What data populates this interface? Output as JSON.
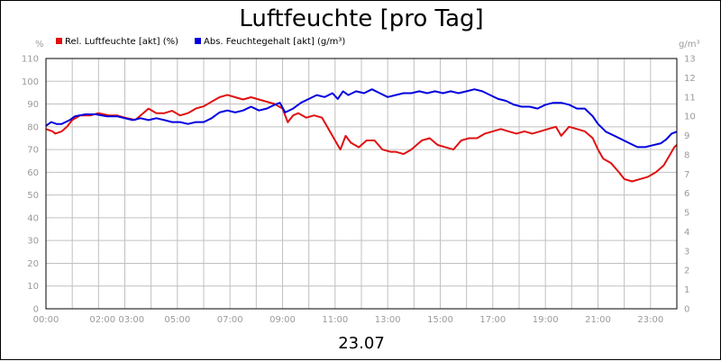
{
  "chart_data": {
    "type": "line",
    "title": "Luftfeuchte [pro Tag]",
    "date_label": "23.07",
    "left_unit": "%",
    "right_unit": "g/m³",
    "ylim_left": [
      0,
      110
    ],
    "ylim_right": [
      0,
      13
    ],
    "grid": true,
    "legend_position": "top-left",
    "x_range_hours": [
      0,
      24
    ],
    "x_ticks": [
      {
        "x": 0,
        "label": "00:00"
      },
      {
        "x": 2.7,
        "label": "02:00 03:00"
      },
      {
        "x": 5,
        "label": "05:00"
      },
      {
        "x": 7,
        "label": "07:00"
      },
      {
        "x": 9,
        "label": "09:00"
      },
      {
        "x": 11,
        "label": "11:00"
      },
      {
        "x": 13,
        "label": "13:00"
      },
      {
        "x": 15,
        "label": "15:00"
      },
      {
        "x": 17,
        "label": "17:00"
      },
      {
        "x": 19,
        "label": "19:00"
      },
      {
        "x": 21,
        "label": "21:00"
      },
      {
        "x": 23,
        "label": "23:00"
      }
    ],
    "y_ticks_left": [
      "0",
      "10",
      "20",
      "30",
      "40",
      "50",
      "60",
      "70",
      "80",
      "90",
      "100",
      "110"
    ],
    "y_ticks_right": [
      "0",
      "1",
      "2",
      "3",
      "4",
      "5",
      "6",
      "7",
      "8",
      "9",
      "10",
      "11",
      "12",
      "13"
    ],
    "series": [
      {
        "name": "Rel. Luftfeuchte [akt] (%)",
        "color": "#e01010",
        "axis": "left",
        "points": [
          [
            0,
            79
          ],
          [
            0.25,
            78
          ],
          [
            0.35,
            77
          ],
          [
            0.6,
            78
          ],
          [
            0.8,
            80
          ],
          [
            1.0,
            83
          ],
          [
            1.3,
            85
          ],
          [
            1.7,
            85
          ],
          [
            2.0,
            86
          ],
          [
            2.4,
            85
          ],
          [
            2.7,
            85
          ],
          [
            3.0,
            84
          ],
          [
            3.4,
            83
          ],
          [
            3.7,
            86
          ],
          [
            3.9,
            88
          ],
          [
            4.2,
            86
          ],
          [
            4.5,
            86
          ],
          [
            4.8,
            87
          ],
          [
            5.1,
            85
          ],
          [
            5.4,
            86
          ],
          [
            5.7,
            88
          ],
          [
            6.0,
            89
          ],
          [
            6.3,
            91
          ],
          [
            6.6,
            93
          ],
          [
            6.9,
            94
          ],
          [
            7.2,
            93
          ],
          [
            7.5,
            92
          ],
          [
            7.8,
            93
          ],
          [
            8.1,
            92
          ],
          [
            8.4,
            91
          ],
          [
            8.7,
            90
          ],
          [
            9.0,
            88
          ],
          [
            9.2,
            82
          ],
          [
            9.4,
            85
          ],
          [
            9.6,
            86
          ],
          [
            9.9,
            84
          ],
          [
            10.2,
            85
          ],
          [
            10.5,
            84
          ],
          [
            10.8,
            78
          ],
          [
            11.0,
            74
          ],
          [
            11.2,
            70
          ],
          [
            11.4,
            76
          ],
          [
            11.6,
            73
          ],
          [
            11.9,
            71
          ],
          [
            12.2,
            74
          ],
          [
            12.5,
            74
          ],
          [
            12.8,
            70
          ],
          [
            13.1,
            69
          ],
          [
            13.3,
            69
          ],
          [
            13.6,
            68
          ],
          [
            13.9,
            70
          ],
          [
            14.1,
            72
          ],
          [
            14.3,
            74
          ],
          [
            14.6,
            75
          ],
          [
            14.9,
            72
          ],
          [
            15.2,
            71
          ],
          [
            15.5,
            70
          ],
          [
            15.8,
            74
          ],
          [
            16.1,
            75
          ],
          [
            16.4,
            75
          ],
          [
            16.7,
            77
          ],
          [
            17.0,
            78
          ],
          [
            17.3,
            79
          ],
          [
            17.6,
            78
          ],
          [
            17.9,
            77
          ],
          [
            18.2,
            78
          ],
          [
            18.5,
            77
          ],
          [
            18.8,
            78
          ],
          [
            19.1,
            79
          ],
          [
            19.4,
            80
          ],
          [
            19.6,
            76
          ],
          [
            19.9,
            80
          ],
          [
            20.2,
            79
          ],
          [
            20.5,
            78
          ],
          [
            20.8,
            75
          ],
          [
            21.0,
            70
          ],
          [
            21.2,
            66
          ],
          [
            21.5,
            64
          ],
          [
            21.8,
            60
          ],
          [
            22.0,
            57
          ],
          [
            22.3,
            56
          ],
          [
            22.6,
            57
          ],
          [
            22.9,
            58
          ],
          [
            23.2,
            60
          ],
          [
            23.5,
            63
          ],
          [
            23.7,
            67
          ],
          [
            23.9,
            71
          ],
          [
            24,
            72
          ]
        ]
      },
      {
        "name": "Abs. Feuchtegehalt [akt] (g/m³)",
        "color": "#0000e0",
        "axis": "right",
        "points": [
          [
            0,
            9.5
          ],
          [
            0.2,
            9.7
          ],
          [
            0.4,
            9.6
          ],
          [
            0.6,
            9.6
          ],
          [
            0.9,
            9.8
          ],
          [
            1.1,
            10.0
          ],
          [
            1.5,
            10.1
          ],
          [
            1.9,
            10.1
          ],
          [
            2.3,
            10.0
          ],
          [
            2.7,
            10.0
          ],
          [
            3.0,
            9.9
          ],
          [
            3.3,
            9.8
          ],
          [
            3.6,
            9.9
          ],
          [
            3.9,
            9.8
          ],
          [
            4.2,
            9.9
          ],
          [
            4.5,
            9.8
          ],
          [
            4.8,
            9.7
          ],
          [
            5.1,
            9.7
          ],
          [
            5.4,
            9.6
          ],
          [
            5.7,
            9.7
          ],
          [
            6.0,
            9.7
          ],
          [
            6.3,
            9.9
          ],
          [
            6.6,
            10.2
          ],
          [
            6.9,
            10.3
          ],
          [
            7.2,
            10.2
          ],
          [
            7.5,
            10.3
          ],
          [
            7.8,
            10.5
          ],
          [
            8.1,
            10.3
          ],
          [
            8.4,
            10.4
          ],
          [
            8.7,
            10.6
          ],
          [
            8.9,
            10.7
          ],
          [
            9.1,
            10.2
          ],
          [
            9.4,
            10.4
          ],
          [
            9.7,
            10.7
          ],
          [
            10.0,
            10.9
          ],
          [
            10.3,
            11.1
          ],
          [
            10.6,
            11.0
          ],
          [
            10.9,
            11.2
          ],
          [
            11.1,
            10.9
          ],
          [
            11.3,
            11.3
          ],
          [
            11.5,
            11.1
          ],
          [
            11.8,
            11.3
          ],
          [
            12.1,
            11.2
          ],
          [
            12.4,
            11.4
          ],
          [
            12.7,
            11.2
          ],
          [
            13.0,
            11.0
          ],
          [
            13.3,
            11.1
          ],
          [
            13.6,
            11.2
          ],
          [
            13.9,
            11.2
          ],
          [
            14.2,
            11.3
          ],
          [
            14.5,
            11.2
          ],
          [
            14.8,
            11.3
          ],
          [
            15.1,
            11.2
          ],
          [
            15.4,
            11.3
          ],
          [
            15.7,
            11.2
          ],
          [
            16.0,
            11.3
          ],
          [
            16.3,
            11.4
          ],
          [
            16.6,
            11.3
          ],
          [
            16.9,
            11.1
          ],
          [
            17.2,
            10.9
          ],
          [
            17.5,
            10.8
          ],
          [
            17.8,
            10.6
          ],
          [
            18.1,
            10.5
          ],
          [
            18.4,
            10.5
          ],
          [
            18.7,
            10.4
          ],
          [
            19.0,
            10.6
          ],
          [
            19.3,
            10.7
          ],
          [
            19.6,
            10.7
          ],
          [
            19.9,
            10.6
          ],
          [
            20.2,
            10.4
          ],
          [
            20.5,
            10.4
          ],
          [
            20.8,
            10.0
          ],
          [
            21.0,
            9.6
          ],
          [
            21.3,
            9.2
          ],
          [
            21.6,
            9.0
          ],
          [
            21.9,
            8.8
          ],
          [
            22.2,
            8.6
          ],
          [
            22.5,
            8.4
          ],
          [
            22.8,
            8.4
          ],
          [
            23.1,
            8.5
          ],
          [
            23.4,
            8.6
          ],
          [
            23.6,
            8.8
          ],
          [
            23.8,
            9.1
          ],
          [
            24,
            9.2
          ]
        ]
      }
    ]
  }
}
